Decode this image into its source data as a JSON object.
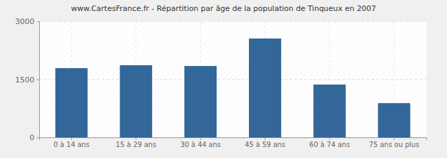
{
  "chart_data": {
    "type": "bar",
    "title": "www.CartesFrance.fr - Répartition par âge de la population de Tinqueux en 2007",
    "categories": [
      "0 à 14 ans",
      "15 à 29 ans",
      "30 à 44 ans",
      "45 à 59 ans",
      "60 à 74 ans",
      "75 ans ou plus"
    ],
    "values": [
      1790,
      1865,
      1845,
      2555,
      1365,
      885
    ],
    "color": "#336699",
    "ylim": [
      0,
      3000
    ],
    "yticks": [
      0,
      1500,
      3000
    ],
    "grid": true
  }
}
